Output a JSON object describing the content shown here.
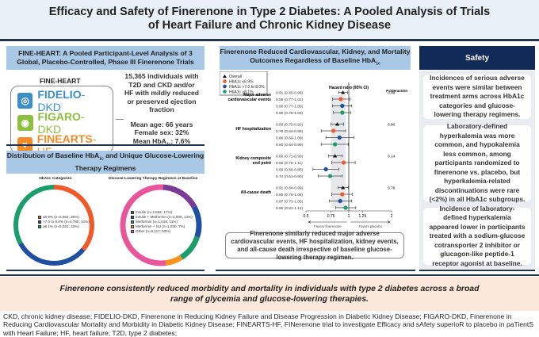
{
  "title": "Efficacy and Safety of Finerenone in Type 2 Diabetes: A Pooled Analysis of Trials of Heart Failure and Chronic Kidney Disease",
  "left": {
    "header": "FINE-HEART: A Pooled Participant-Level Analysis of 3 Global, Placebo-Controlled, Phase III Finerenone Trials",
    "program": "FINE-HEART",
    "trials": [
      {
        "bold": "FIDELIO",
        "thin": "-DKD",
        "color": "#3a8fc8"
      },
      {
        "bold": "FIGARO",
        "thin": "-DKD",
        "color": "#8dbf3f"
      },
      {
        "bold": "FINEARTS",
        "thin": "-HF",
        "color": "#f28c28"
      }
    ],
    "population": "15,365 individuals with T2D and CKD and/or HF with mildly reduced or preserved ejection fraction",
    "age": "Mean age: 66 years",
    "female": "Female sex: 32%",
    "hba1c_prefix": "Mean HbA",
    "hba1c_sub": "1c",
    "hba1c_value": ": 7.6%",
    "dist_header_a": "Distribution of Baseline HbA",
    "dist_header_sub": "1c",
    "dist_header_b": " and Unique Glucose-Lowering Therapy Regimens",
    "donut1": {
      "title": "HbA1c Categories",
      "slices": [
        {
          "label": "≤6.9% (n=5,564; 36%)",
          "value": 36,
          "color": "#ef5a28"
        },
        {
          "label": ">7.0 to 8.0% (n=4,780; 31%)",
          "value": 31,
          "color": "#1f4fa0"
        },
        {
          "label": "≥8.1% (n=5,021; 33%)",
          "value": 33,
          "color": "#1a9e6a"
        }
      ]
    },
    "donut2": {
      "title": "Glucose-Lowering Therapy Regimens at Baseline",
      "slices": [
        {
          "label": "Insulin (n=2,652; 17%)",
          "value": 17,
          "color": "#7b3a96"
        },
        {
          "label": "Insulin + Metformin (n=2,005; 13%)",
          "value": 13,
          "color": "#1f4fa0"
        },
        {
          "label": "Metformin (n=1,616; 11%)",
          "value": 11,
          "color": "#1a9e6a"
        },
        {
          "label": "Metformin + SU (n=1,030; 7%)",
          "value": 7,
          "color": "#f7931e"
        },
        {
          "label": "Other (n=8,117; 53%)",
          "value": 53,
          "color": "#e8559a"
        }
      ]
    }
  },
  "middle": {
    "header_a": "Finerenone Reduced Cardiovascular, Kidney, and Mortality Outcomes Regardless of Baseline HbA",
    "header_sub": "1c",
    "summary": "Finerenone similarly reduced major adverse cardiovascular events, HF hospitalization, kidney events, and all-cause death irrespective of baseline glucose-lowering therapy regimen."
  },
  "chart_data": {
    "type": "forest",
    "xlabel": "Hazard ratio (95% CI)",
    "p_label": "P interaction",
    "xscale": "log",
    "xlim": [
      0.5,
      2
    ],
    "reference": 1,
    "ticks": [
      "0.5",
      "0.75",
      "1",
      "1.25",
      "2"
    ],
    "favors_left": "Favors finerenone",
    "favors_right": "Favors placebo",
    "legend": [
      {
        "name": "Overall",
        "color": "#111111",
        "marker": "triangle"
      },
      {
        "name": "HbA1c ≤6.9%",
        "color": "#ef5a28",
        "marker": "circle"
      },
      {
        "name": "HbA1c >7.0 to 8.0%",
        "color": "#1f4fa0",
        "marker": "circle"
      },
      {
        "name": "HbA1c ≥8.1%",
        "color": "#1a9e6a",
        "marker": "circle"
      }
    ],
    "groups": [
      {
        "name": "Major adverse cardiovascular events",
        "p": "0.99",
        "rows": [
          [
            0.91,
            0.85,
            0.98
          ],
          [
            0.88,
            0.77,
            1.02
          ],
          [
            0.9,
            0.77,
            1.05
          ],
          [
            0.9,
            0.78,
            1.03
          ]
        ],
        "labels": [
          "0.91 (0.85-0.98)",
          "0.88 (0.77-1.02)",
          "0.90 (0.77-1.05)",
          "0.90 (0.78-1.03)"
        ]
      },
      {
        "name": "HF hospitalization",
        "p": "0.80",
        "rows": [
          [
            0.83,
            0.75,
            0.92
          ],
          [
            0.78,
            0.64,
            0.95
          ],
          [
            0.86,
            0.69,
            1.09
          ],
          [
            0.8,
            0.64,
            0.99
          ]
        ],
        "labels": [
          "0.83 (0.75-0.92)",
          "0.78 (0.64-0.95)",
          "0.86 (0.69-1.09)",
          "0.80 (0.64-0.99)"
        ]
      },
      {
        "name": "Kidney composite end point",
        "p": "0.14",
        "rows": [
          [
            0.8,
            0.72,
            0.9
          ],
          [
            0.92,
            0.76,
            1.11
          ],
          [
            0.69,
            0.56,
            0.85
          ],
          [
            0.74,
            0.61,
            0.9
          ]
        ],
        "labels": [
          "0.80 (0.72-0.90)",
          "0.92 (0.76-1.11)",
          "0.69 (0.56-0.85)",
          "0.74 (0.61-0.90)"
        ]
      },
      {
        "name": "All-cause death",
        "p": "0.76",
        "rows": [
          [
            0.91,
            0.84,
            0.99
          ],
          [
            0.9,
            0.76,
            1.06
          ],
          [
            0.87,
            0.73,
            1.05
          ],
          [
            0.95,
            0.81,
            1.12
          ]
        ],
        "labels": [
          "0.91 (0.84-0.99)",
          "0.90 (0.76-1.06)",
          "0.87 (0.73-1.05)",
          "0.95 (0.81-1.12)"
        ]
      }
    ]
  },
  "right": {
    "header": "Safety",
    "cards": [
      "Incidences of serious adverse events were similar between treatment arms across HbA1c categories and glucose-lowering therapy regimens.",
      "Laboratory-defined hyperkalemia was more common, and hypokalemia less common, among participants randomized to finerenone vs. placebo, but hyperkalemia-related discontinuations were rare (<2%) in all HbA1c subgroups.",
      "Incidence of laboratory-defined hyperkalemia appeared lower in participants treated with a sodium-glucose cotransporter 2 inhibitor or glucagon-like peptide-1 receptor agonist at baseline."
    ]
  },
  "conclusion": "Finerenone consistently reduced morbidity and mortality in individuals with type 2 diabetes across a broad range of glycemia and glucose-lowering therapies.",
  "footnote": "CKD, chronic kidney disease;  FIDELIO-DKD, Finerenone in Reducing Kidney Failure and Disease Progression in Diabetic Kidney Disease; FIGARO-DKD, Finerenone in Reducing Cardiovascular Mortality and Morbidity in Diabetic Kidney Disease; FINEARTS-HF, FINerenone trial to investigate Efficacy and sAfety superioR to placebo in paTientS with Heart Failure; HF, heart failure; T2D, type 2 diabetes;"
}
